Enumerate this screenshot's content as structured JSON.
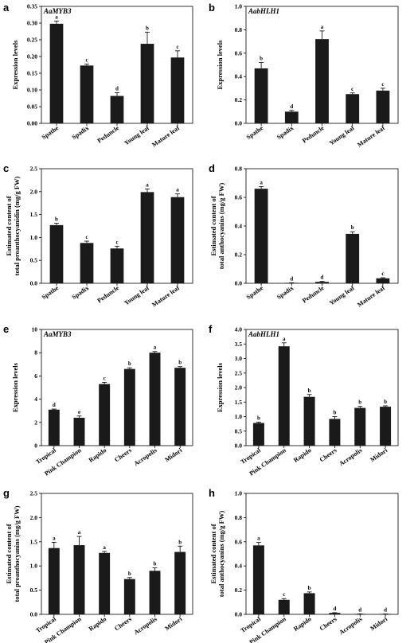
{
  "chart_data": [
    {
      "panel": "a",
      "type": "bar",
      "gene_label": "AaMYB3",
      "categories": [
        "Spathe",
        "Spadix",
        "Peduncle",
        "Young leaf",
        "Mature leaf"
      ],
      "values": [
        0.298,
        0.173,
        0.082,
        0.238,
        0.197
      ],
      "errors": [
        0.008,
        0.004,
        0.01,
        0.035,
        0.02
      ],
      "letters": [
        "a",
        "c",
        "d",
        "b",
        "c"
      ],
      "ylabel_lines": [
        "Expression levels"
      ],
      "yticks": [
        "0.00",
        "0.05",
        "0.10",
        "0.15",
        "0.20",
        "0.25",
        "0.30",
        "0.35"
      ],
      "ylim": [
        0,
        0.35
      ]
    },
    {
      "panel": "b",
      "type": "bar",
      "gene_label": "AabHLH1",
      "categories": [
        "Spathe",
        "Spadix",
        "Peduncle",
        "Young leaf",
        "Mature leaf"
      ],
      "values": [
        0.47,
        0.1,
        0.72,
        0.25,
        0.28
      ],
      "errors": [
        0.05,
        0.01,
        0.07,
        0.01,
        0.02
      ],
      "letters": [
        "b",
        "d",
        "a",
        "c",
        "c"
      ],
      "ylabel_lines": [
        "Expression levels"
      ],
      "yticks": [
        "0.0",
        "0.2",
        "0.4",
        "0.6",
        "0.8",
        "1.0"
      ],
      "ylim": [
        0,
        1.0
      ]
    },
    {
      "panel": "c",
      "type": "bar",
      "gene_label": "",
      "categories": [
        "Spathe",
        "Spadix",
        "Peduncle",
        "Young leaf",
        "Mature leaf"
      ],
      "values": [
        1.27,
        0.88,
        0.76,
        1.99,
        1.88
      ],
      "errors": [
        0.04,
        0.04,
        0.05,
        0.07,
        0.07
      ],
      "letters": [
        "b",
        "c",
        "c",
        "a",
        "a"
      ],
      "ylabel_lines": [
        "Estimated content of",
        "total proanthocyanidin (mg/g FW)"
      ],
      "yticks": [
        "0.0",
        "0.5",
        "1.0",
        "1.5",
        "2.0",
        "2.5"
      ],
      "ylim": [
        0,
        2.5
      ]
    },
    {
      "panel": "d",
      "type": "bar",
      "gene_label": "",
      "categories": [
        "Spathe",
        "Spadix",
        "Peduncle",
        "Young leaf",
        "Mature leaf"
      ],
      "values": [
        0.66,
        0.003,
        0.01,
        0.345,
        0.035
      ],
      "errors": [
        0.015,
        0.001,
        0.003,
        0.015,
        0.004
      ],
      "letters": [
        "a",
        "d",
        "d",
        "b",
        "c"
      ],
      "ylabel_lines": [
        "Estimated content of",
        "total anthocyanins (mg/g FW)"
      ],
      "yticks": [
        "0.0",
        "0.2",
        "0.4",
        "0.6",
        "0.8"
      ],
      "ylim": [
        0,
        0.8
      ]
    },
    {
      "panel": "e",
      "type": "bar",
      "gene_label": "AaMYB3",
      "categories": [
        "Tropical",
        "Pink Champion",
        "Rapido",
        "Cheers",
        "Acropolis",
        "Midori"
      ],
      "values": [
        3.1,
        2.4,
        5.3,
        6.6,
        8.0,
        6.7
      ],
      "errors": [
        0.05,
        0.15,
        0.15,
        0.1,
        0.1,
        0.1
      ],
      "letters": [
        "d",
        "e",
        "c",
        "b",
        "a",
        "b"
      ],
      "ylabel_lines": [
        "Expression levels"
      ],
      "yticks": [
        "0",
        "2",
        "4",
        "6",
        "8",
        "10"
      ],
      "ylim": [
        0,
        10
      ]
    },
    {
      "panel": "f",
      "type": "bar",
      "gene_label": "AabHLH1",
      "categories": [
        "Tropical",
        "Pink Champion",
        "Rapido",
        "Cheers",
        "Acropolis",
        "Midori"
      ],
      "values": [
        0.78,
        3.42,
        1.68,
        0.92,
        1.3,
        1.34
      ],
      "errors": [
        0.03,
        0.12,
        0.08,
        0.08,
        0.05,
        0.03
      ],
      "letters": [
        "b",
        "a",
        "b",
        "b",
        "b",
        "b"
      ],
      "ylabel_lines": [
        "Expression levels"
      ],
      "yticks": [
        "0.0",
        "0.5",
        "1.0",
        "1.5",
        "2.0",
        "2.5",
        "3.0",
        "3.5",
        "4.0"
      ],
      "ylim": [
        0,
        4.0
      ]
    },
    {
      "panel": "g",
      "type": "bar",
      "gene_label": "",
      "categories": [
        "Tropical",
        "Pink Champion",
        "Rapido",
        "Cheers",
        "Acropolis",
        "Midori"
      ],
      "values": [
        1.37,
        1.43,
        1.27,
        0.73,
        0.9,
        1.29
      ],
      "errors": [
        0.12,
        0.18,
        0.03,
        0.03,
        0.06,
        0.12
      ],
      "letters": [
        "a",
        "a",
        "a",
        "b",
        "b",
        "b"
      ],
      "ylabel_lines": [
        "Estimated content of",
        "total proanthocyanins (mg/g FW)"
      ],
      "yticks": [
        "0.0",
        "0.5",
        "1.0",
        "1.5",
        "2.0",
        "2.5"
      ],
      "ylim": [
        0,
        2.5
      ]
    },
    {
      "panel": "h",
      "type": "bar",
      "gene_label": "",
      "categories": [
        "Tropical",
        "Pink Champion",
        "Rapido",
        "Cheers",
        "Acropolis",
        "Midori"
      ],
      "values": [
        0.57,
        0.12,
        0.175,
        0.012,
        0.003,
        0.002
      ],
      "errors": [
        0.025,
        0.01,
        0.01,
        0.002,
        0.001,
        0.001
      ],
      "letters": [
        "a",
        "c",
        "b",
        "d",
        "d",
        "d"
      ],
      "ylabel_lines": [
        "Estimated content of",
        "total anthocyanins (mg/g FW)"
      ],
      "yticks": [
        "0.0",
        "0.2",
        "0.4",
        "0.6",
        "0.8",
        "1.0"
      ],
      "ylim": [
        0,
        1.0
      ]
    }
  ]
}
